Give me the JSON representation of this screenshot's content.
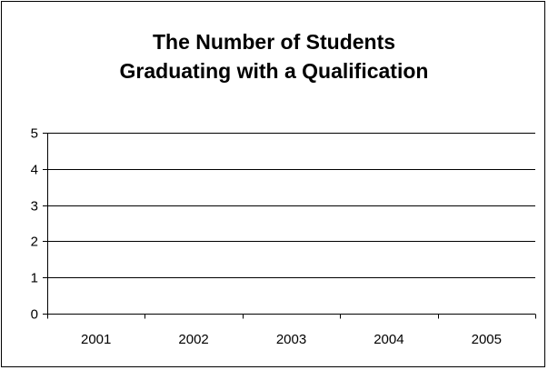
{
  "chart_data": {
    "type": "bar",
    "title": [
      "The Number of Students",
      "Graduating with a Qualification"
    ],
    "categories": [
      "2001",
      "2002",
      "2003",
      "2004",
      "2005"
    ],
    "series": [
      {
        "values": [
          null,
          null,
          null,
          null,
          null
        ]
      }
    ],
    "yticks": [
      "0",
      "1",
      "2",
      "3",
      "4",
      "5"
    ],
    "ylim": [
      0,
      5
    ],
    "xlabel": "",
    "ylabel": "",
    "grid": true,
    "legend": "none",
    "colors": {
      "gridline": "#000000",
      "axis": "#000000",
      "background": "#ffffff"
    }
  }
}
